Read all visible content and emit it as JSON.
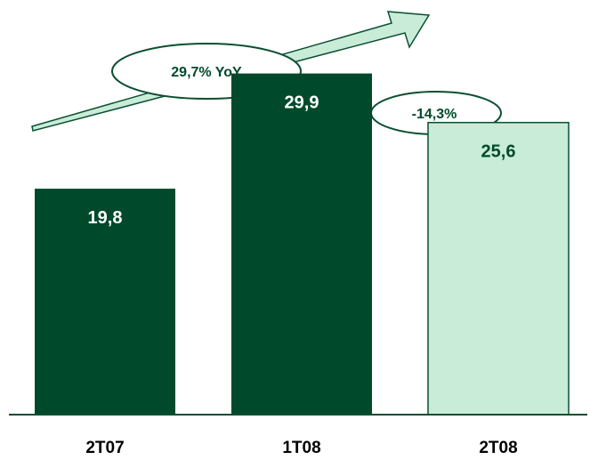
{
  "chart_data": {
    "type": "bar",
    "categories": [
      "2T07",
      "1T08",
      "2T08"
    ],
    "values": [
      19.8,
      29.9,
      25.6
    ],
    "value_labels": [
      "19,8",
      "29,9",
      "25,6"
    ],
    "title": "",
    "xlabel": "",
    "ylabel": "",
    "ylim": [
      0,
      34
    ],
    "grid": false,
    "legend": "none",
    "annotations": [
      {
        "text": "29,7% YoY",
        "from": "2T07",
        "to": "2T08",
        "direction": "up"
      },
      {
        "text": "-14,3%",
        "from": "1T08",
        "to": "2T08",
        "direction": "down"
      }
    ]
  },
  "colors": {
    "dark_bar": "#004a2b",
    "light_bar": "#c9ecd9",
    "light_bar_border": "#0b4f31",
    "dark_label": "#ffffff",
    "light_label": "#004a2b",
    "arrow_fill": "#c9ecd9",
    "arrow_stroke": "#0b4f31",
    "ellipse_fill": "#ffffff",
    "axis": "#0b4f31"
  }
}
